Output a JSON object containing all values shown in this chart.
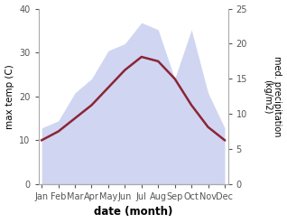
{
  "months": [
    "Jan",
    "Feb",
    "Mar",
    "Apr",
    "May",
    "Jun",
    "Jul",
    "Aug",
    "Sep",
    "Oct",
    "Nov",
    "Dec"
  ],
  "max_temp": [
    10,
    12,
    15,
    18,
    22,
    26,
    29,
    28,
    24,
    18,
    13,
    10
  ],
  "precipitation": [
    8,
    9,
    13,
    15,
    19,
    20,
    23,
    22,
    15,
    22,
    13,
    8
  ],
  "temp_ylim": [
    0,
    40
  ],
  "precip_ylim": [
    0,
    25
  ],
  "temp_yticks": [
    0,
    10,
    20,
    30,
    40
  ],
  "precip_yticks": [
    0,
    5,
    10,
    15,
    20,
    25
  ],
  "fill_color": "#aab4e8",
  "fill_alpha": 0.55,
  "line_color": "#8b2535",
  "line_width": 1.8,
  "xlabel": "date (month)",
  "ylabel_left": "max temp (C)",
  "ylabel_right": "med. precipitation\n(kg/m2)",
  "background_color": "#ffffff"
}
